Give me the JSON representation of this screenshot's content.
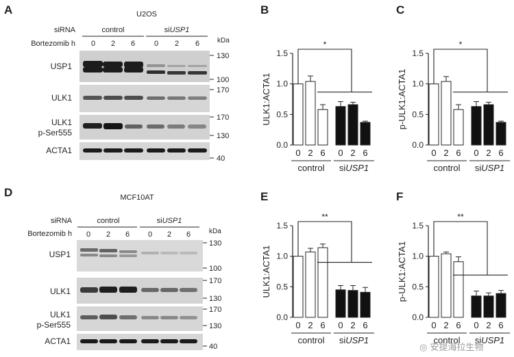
{
  "panels": {
    "A": {
      "letter": "A",
      "cell": "U2OS",
      "siRNA_label": "siRNA",
      "bort_label": "Bortezomib h",
      "groups": [
        "control",
        "siUSP1"
      ],
      "times": [
        "0",
        "2",
        "6",
        "0",
        "2",
        "6"
      ],
      "kda_label": "kDa",
      "blots": [
        {
          "name": "USP1",
          "label_lines": [
            "USP1"
          ],
          "markers": [
            "130",
            "100"
          ]
        },
        {
          "name": "ULK1",
          "label_lines": [
            "ULK1"
          ],
          "markers": [
            "170"
          ]
        },
        {
          "name": "ULK1 p-Ser555",
          "label_lines": [
            "ULK1",
            "p-Ser555"
          ],
          "markers": [
            "170",
            "130"
          ]
        },
        {
          "name": "ACTA1",
          "label_lines": [
            "ACTA1"
          ],
          "markers": [
            "40"
          ]
        }
      ]
    },
    "D": {
      "letter": "D",
      "cell": "MCF10AT",
      "siRNA_label": "siRNA",
      "bort_label": "Bortezomib h",
      "groups": [
        "control",
        "siUSP1"
      ],
      "times": [
        "0",
        "2",
        "6",
        "0",
        "2",
        "6"
      ],
      "kda_label": "kDa",
      "blots": [
        {
          "name": "USP1",
          "label_lines": [
            "USP1"
          ],
          "markers": [
            "130",
            "100"
          ]
        },
        {
          "name": "ULK1",
          "label_lines": [
            "ULK1"
          ],
          "markers": [
            "170",
            "130"
          ]
        },
        {
          "name": "ULK1 p-Ser555",
          "label_lines": [
            "ULK1",
            "p-Ser555"
          ],
          "markers": [
            "170",
            "130"
          ]
        },
        {
          "name": "ACTA1",
          "label_lines": [
            "ACTA1"
          ],
          "markers": [
            "40"
          ]
        }
      ]
    }
  },
  "chart_data": [
    {
      "panel": "B",
      "type": "bar",
      "ylabel": "ULK1:ACTA1",
      "ylim": [
        0,
        1.5
      ],
      "yticks": [
        "0.0",
        "0.5",
        "1.0",
        "1.5"
      ],
      "categories": [
        "0",
        "2",
        "6",
        "0",
        "2",
        "6"
      ],
      "groups": [
        "control",
        "siUSP1"
      ],
      "values": [
        1.0,
        1.04,
        0.58,
        0.63,
        0.66,
        0.37
      ],
      "errors": [
        0,
        0.09,
        0.08,
        0.08,
        0.04,
        0.02
      ],
      "fill": [
        "#ffffff",
        "#ffffff",
        "#ffffff",
        "#111111",
        "#111111",
        "#111111"
      ],
      "significance": "*"
    },
    {
      "panel": "C",
      "type": "bar",
      "ylabel": "p-ULK1:ACTA1",
      "ylim": [
        0,
        1.5
      ],
      "yticks": [
        "0.0",
        "0.5",
        "1.0",
        "1.5"
      ],
      "categories": [
        "0",
        "2",
        "6",
        "0",
        "2",
        "6"
      ],
      "groups": [
        "control",
        "siUSP1"
      ],
      "values": [
        1.0,
        1.04,
        0.58,
        0.63,
        0.66,
        0.37
      ],
      "errors": [
        0,
        0.08,
        0.08,
        0.08,
        0.04,
        0.02
      ],
      "fill": [
        "#ffffff",
        "#ffffff",
        "#ffffff",
        "#111111",
        "#111111",
        "#111111"
      ],
      "significance": "*"
    },
    {
      "panel": "E",
      "type": "bar",
      "ylabel": "ULK1:ACTA1",
      "ylim": [
        0,
        1.5
      ],
      "yticks": [
        "0.0",
        "0.5",
        "1.0",
        "1.5"
      ],
      "categories": [
        "0",
        "2",
        "6",
        "0",
        "2",
        "6"
      ],
      "groups": [
        "control",
        "siUSP1"
      ],
      "values": [
        1.0,
        1.07,
        1.14,
        0.45,
        0.44,
        0.41
      ],
      "errors": [
        0,
        0.06,
        0.06,
        0.07,
        0.08,
        0.08
      ],
      "fill": [
        "#ffffff",
        "#ffffff",
        "#ffffff",
        "#111111",
        "#111111",
        "#111111"
      ],
      "significance": "**"
    },
    {
      "panel": "F",
      "type": "bar",
      "ylabel": "p-ULK1:ACTA1",
      "ylim": [
        0,
        1.5
      ],
      "yticks": [
        "0.0",
        "0.5",
        "1.0",
        "1.5"
      ],
      "categories": [
        "0",
        "2",
        "6",
        "0",
        "2",
        "6"
      ],
      "groups": [
        "control",
        "siUSP1"
      ],
      "values": [
        1.0,
        1.04,
        0.91,
        0.35,
        0.35,
        0.39
      ],
      "errors": [
        0,
        0.03,
        0.08,
        0.08,
        0.05,
        0.05
      ],
      "fill": [
        "#ffffff",
        "#ffffff",
        "#ffffff",
        "#111111",
        "#111111",
        "#111111"
      ],
      "significance": "**"
    }
  ],
  "watermark": "安提海拉生物",
  "colors": {
    "ink": "#222222",
    "bar_dark": "#111111",
    "blot_bg": "#d4d4d4",
    "band": "#1c1c1c"
  }
}
